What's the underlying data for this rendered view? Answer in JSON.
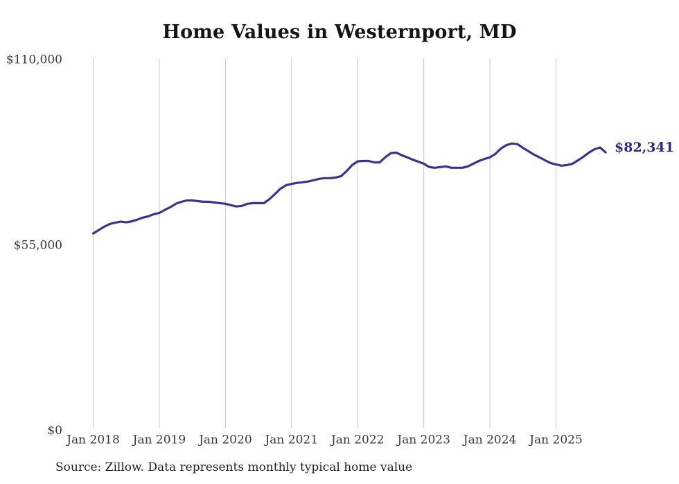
{
  "page": {
    "background": "#ffffff"
  },
  "chart_data": {
    "type": "line",
    "title": "Home Values in Westernport, MD",
    "source_note": "Source: Zillow. Data represents monthly typical home value",
    "end_label": "$82,341",
    "latest_value": 82341,
    "frequency": "monthly",
    "x_start_month": "2018-01",
    "x_end_month": "2025-10",
    "x_tick_labels": [
      "Jan 2018",
      "Jan 2019",
      "Jan 2020",
      "Jan 2021",
      "Jan 2022",
      "Jan 2023",
      "Jan 2024",
      "Jan 2025"
    ],
    "y_ticks": [
      {
        "label": "$0",
        "value": 0
      },
      {
        "label": "$55,000",
        "value": 55000
      },
      {
        "label": "$110,000",
        "value": 110000
      }
    ],
    "ylim": [
      0,
      110000
    ],
    "grid": "vertical-only",
    "legend": "none",
    "colors": {
      "line": "#3a3292",
      "end_label": "#2e2a87",
      "grid": "#c9c9c9",
      "tick_text": "#3a3a3a",
      "title_text": "#141414",
      "source_text": "#1e1e1e"
    },
    "series": [
      {
        "name": "Typical home value (USD)",
        "values": [
          58300,
          59300,
          60300,
          61100,
          61500,
          61800,
          61600,
          61900,
          62400,
          63000,
          63400,
          64000,
          64400,
          65300,
          66100,
          67100,
          67700,
          68100,
          68100,
          67900,
          67700,
          67700,
          67500,
          67300,
          67100,
          66700,
          66300,
          66500,
          67100,
          67300,
          67300,
          67300,
          68500,
          70000,
          71600,
          72600,
          73000,
          73300,
          73500,
          73700,
          74100,
          74500,
          74700,
          74700,
          74900,
          75300,
          76800,
          78600,
          79700,
          79800,
          79800,
          79400,
          79400,
          80900,
          82100,
          82300,
          81500,
          80900,
          80200,
          79600,
          79000,
          78000,
          77800,
          78000,
          78200,
          77800,
          77800,
          77800,
          78200,
          79000,
          79800,
          80400,
          80900,
          81900,
          83500,
          84500,
          85000,
          84800,
          83700,
          82700,
          81700,
          80900,
          80000,
          79200,
          78800,
          78400,
          78600,
          79000,
          80000,
          81100,
          82300,
          83300,
          83800,
          82341
        ]
      }
    ]
  }
}
